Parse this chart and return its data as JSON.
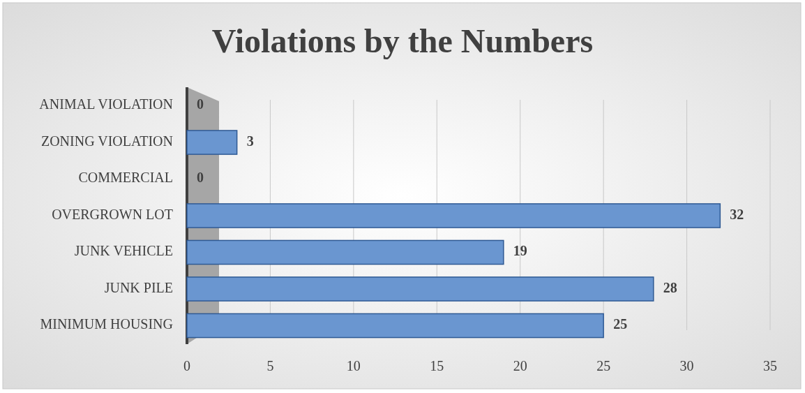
{
  "chart_data": {
    "type": "bar",
    "orientation": "horizontal",
    "title": "Violations by the Numbers",
    "categories": [
      "ANIMAL VIOLATION",
      "ZONING VIOLATION",
      "COMMERCIAL",
      "OVERGROWN LOT",
      "JUNK VEHICLE",
      "JUNK PILE",
      "MINIMUM HOUSING"
    ],
    "values": [
      0,
      3,
      0,
      32,
      19,
      28,
      25
    ],
    "color": "#6a96d0",
    "xlim": [
      0,
      35
    ],
    "xticks": [
      0,
      5,
      10,
      15,
      20,
      25,
      30,
      35
    ],
    "grid": "x",
    "data_labels": true
  }
}
